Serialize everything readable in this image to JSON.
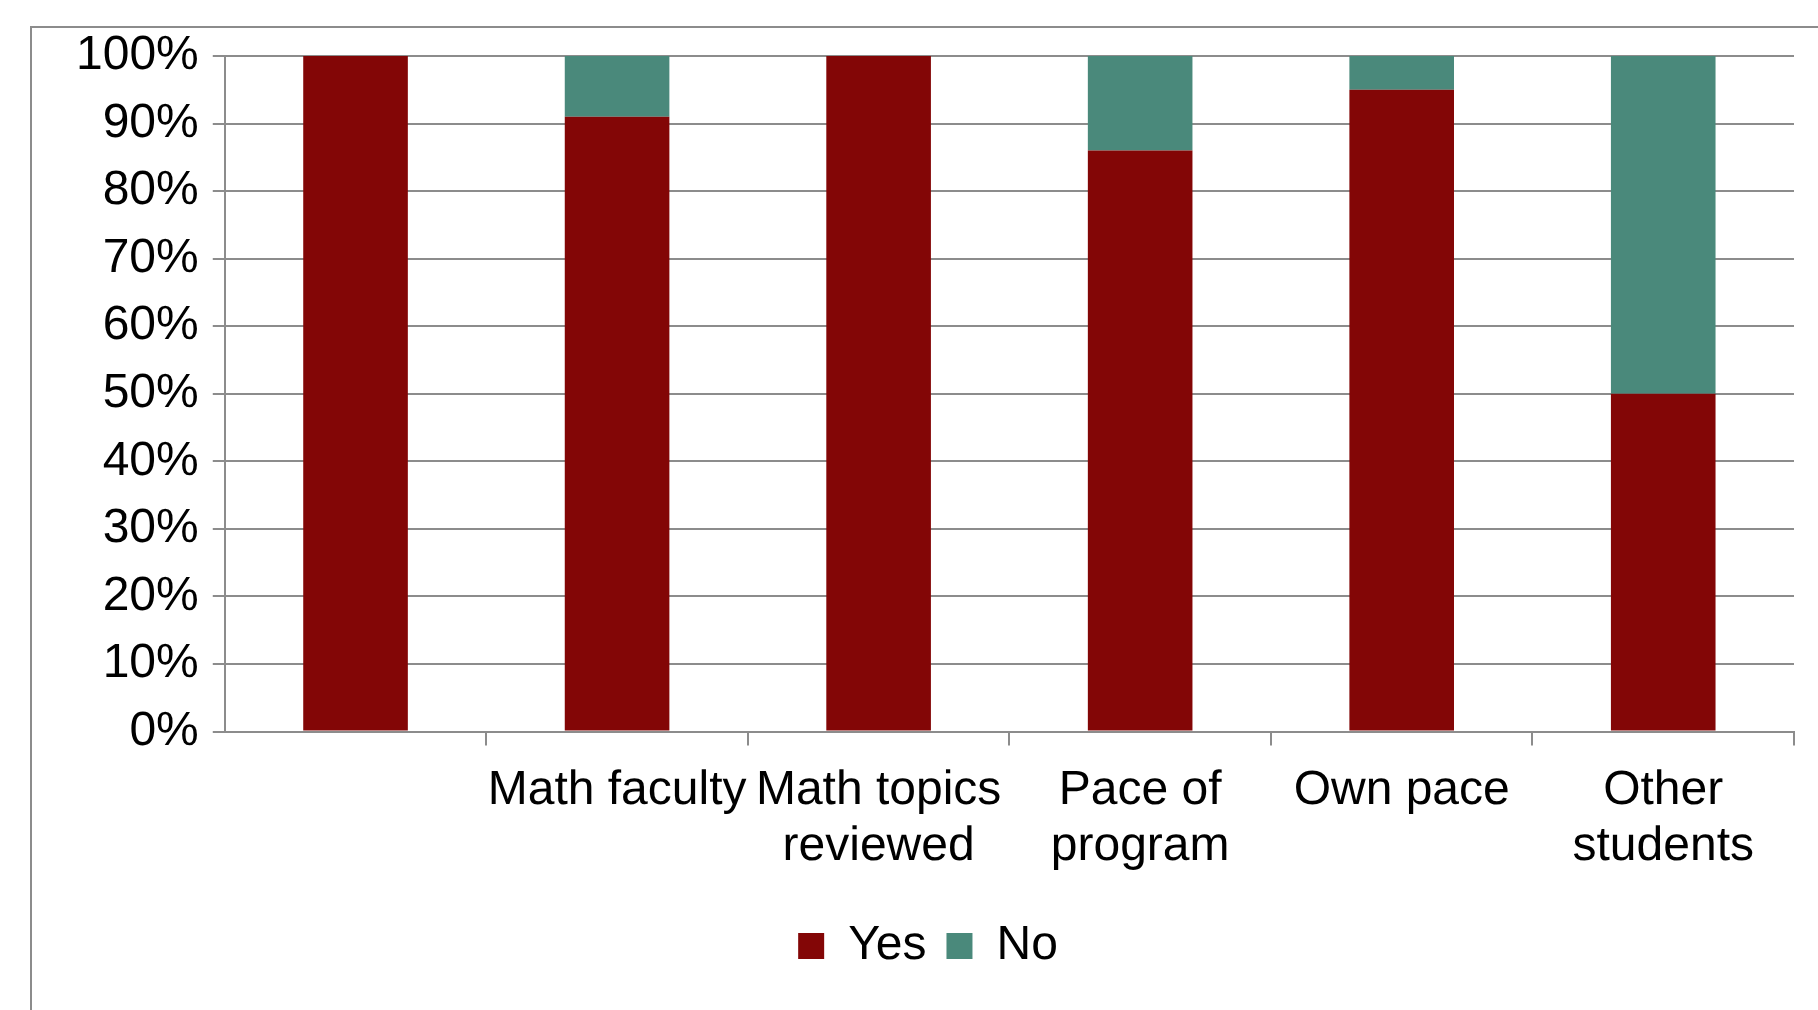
{
  "chart_data": {
    "type": "bar",
    "stacked": true,
    "categories": [
      null,
      "Math faculty",
      "Math topics reviewed",
      "Pace of program",
      "Own pace",
      "Other students"
    ],
    "series": [
      {
        "name": "Yes",
        "color": "#830606",
        "values": [
          100,
          91,
          100,
          86,
          95,
          50
        ]
      },
      {
        "name": "No",
        "color": "#4a897b",
        "values": [
          0,
          9,
          0,
          14,
          5,
          50
        ]
      }
    ],
    "ylim": [
      0,
      100
    ],
    "yticks": [
      {
        "value": 0,
        "label": "0%"
      },
      {
        "value": 10,
        "label": "10%"
      },
      {
        "value": 20,
        "label": "20%"
      },
      {
        "value": 30,
        "label": "30%"
      },
      {
        "value": 40,
        "label": "40%"
      },
      {
        "value": 50,
        "label": "50%"
      },
      {
        "value": 60,
        "label": "60%"
      },
      {
        "value": 70,
        "label": "70%"
      },
      {
        "value": 80,
        "label": "80%"
      },
      {
        "value": 90,
        "label": "90%"
      },
      {
        "value": 100,
        "label": "100%"
      }
    ],
    "grid": "y",
    "legend": "bottom"
  }
}
